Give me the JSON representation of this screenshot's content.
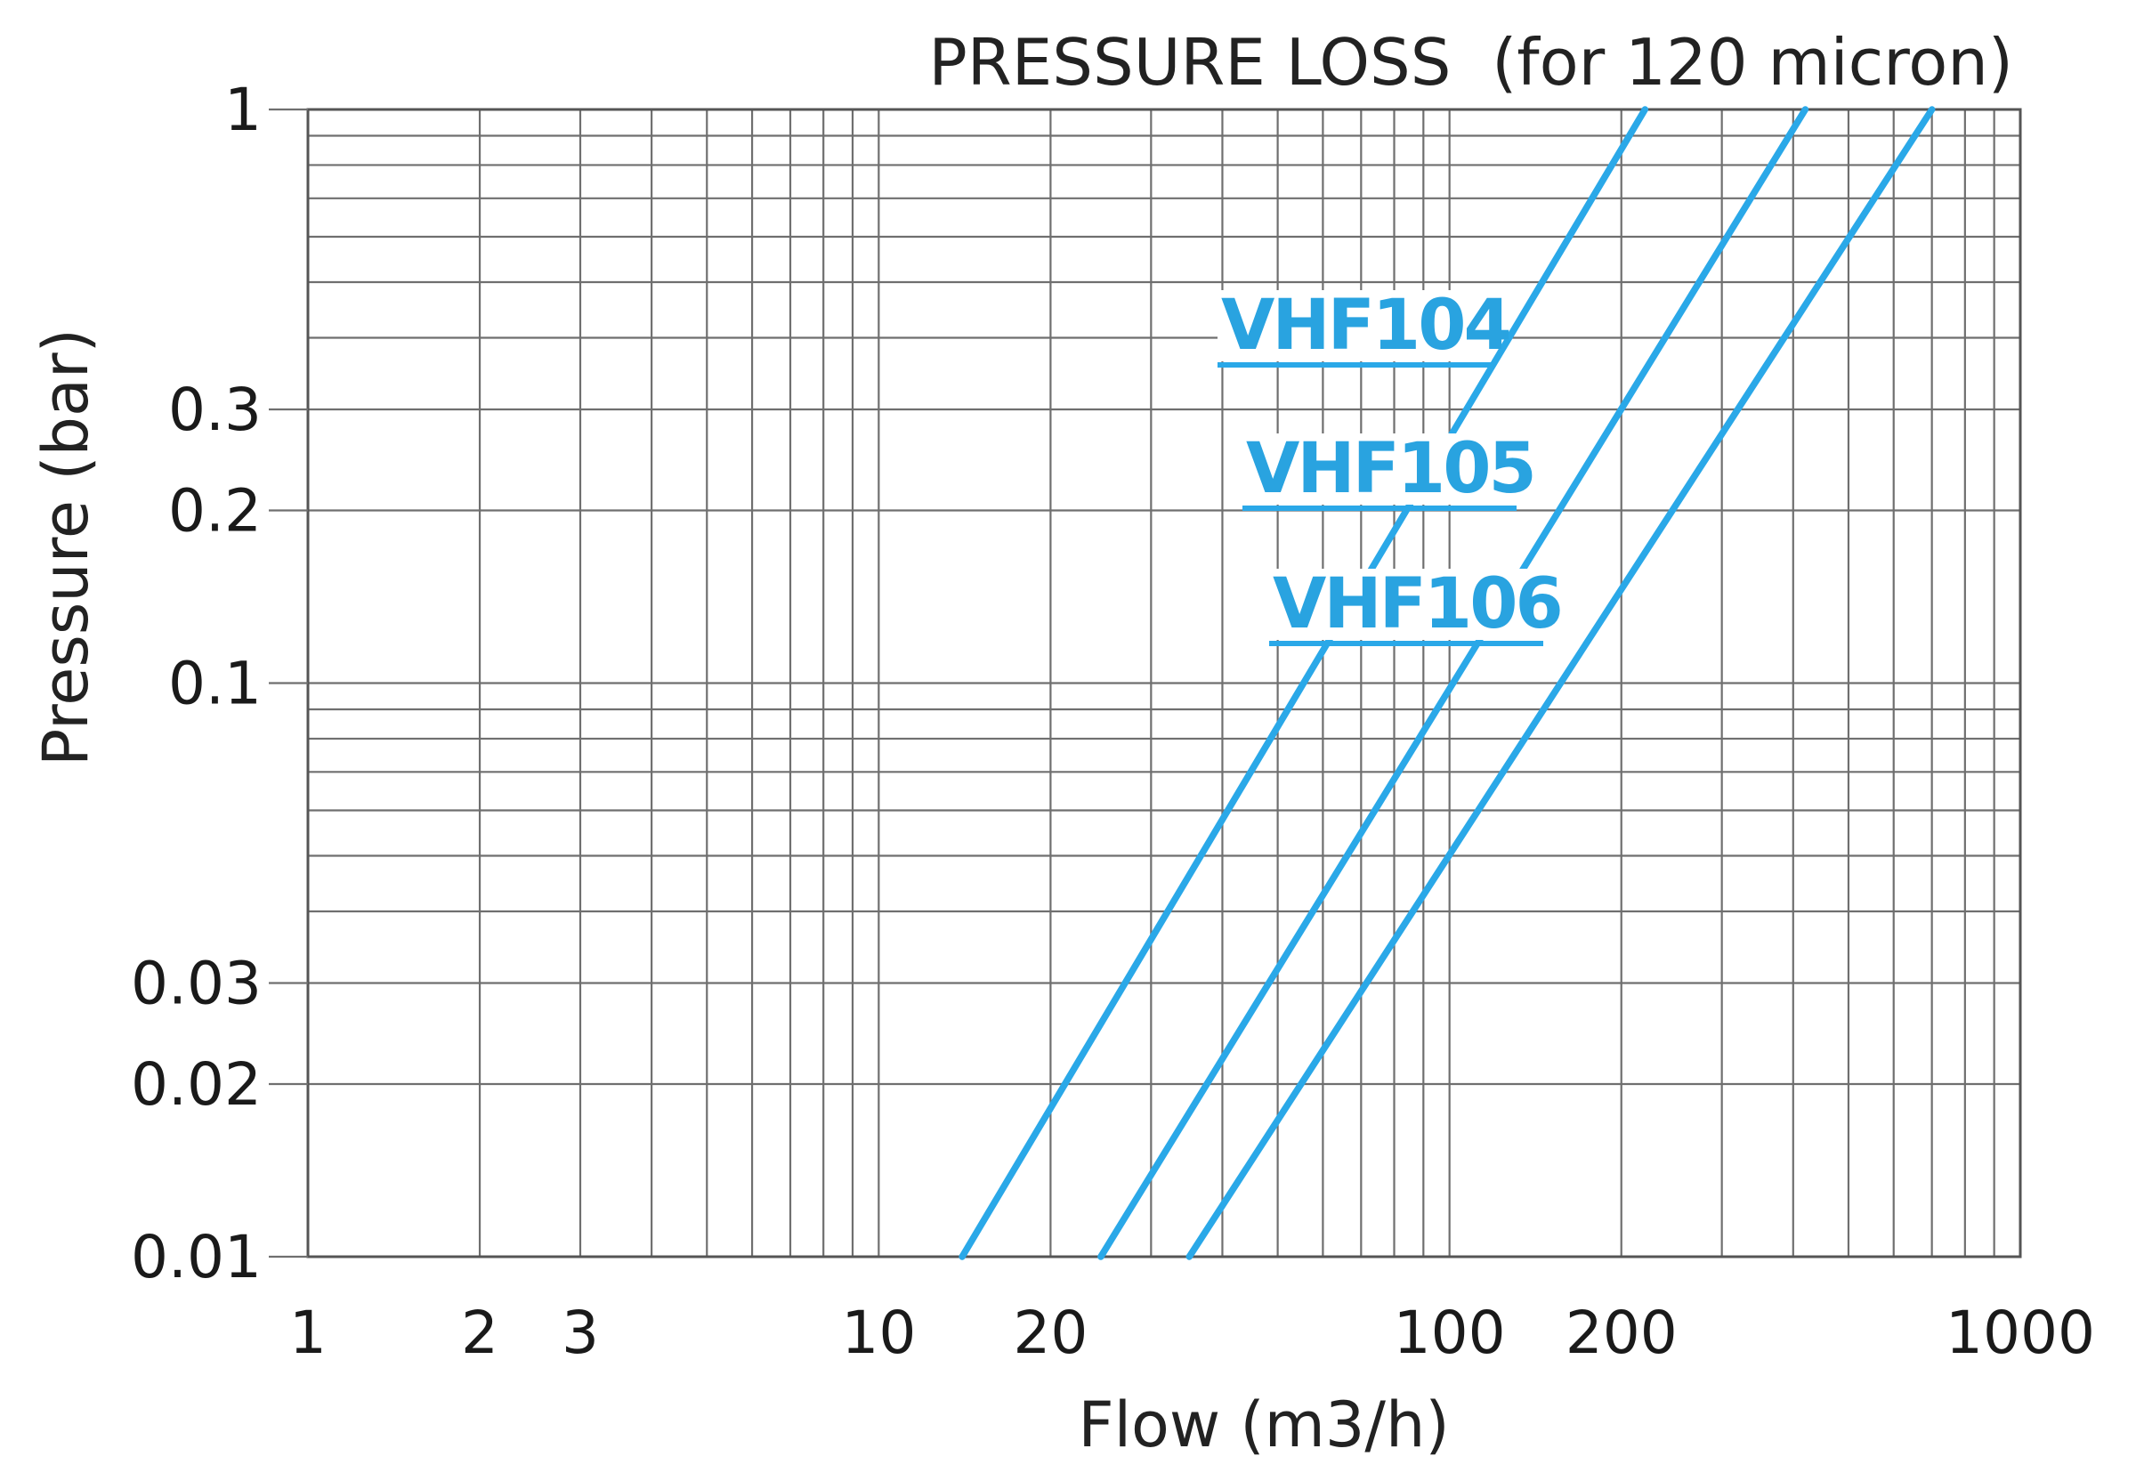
{
  "chart_data": {
    "type": "line",
    "title": "PRESSURE LOSS  (for 120 micron)",
    "xlabel": "Flow (m3/h)",
    "ylabel": "Pressure (bar)",
    "xscale": "log",
    "yscale": "log",
    "xlim": [
      1,
      1000
    ],
    "ylim": [
      0.01,
      1
    ],
    "grid": true,
    "x_ticks": [
      {
        "value": 1,
        "label": "1"
      },
      {
        "value": 2,
        "label": "2"
      },
      {
        "value": 3,
        "label": "3"
      },
      {
        "value": 10,
        "label": "10"
      },
      {
        "value": 20,
        "label": "20"
      },
      {
        "value": 100,
        "label": "100"
      },
      {
        "value": 200,
        "label": "200"
      },
      {
        "value": 1000,
        "label": "1000"
      }
    ],
    "y_ticks": [
      {
        "value": 0.01,
        "label": "0.01"
      },
      {
        "value": 0.02,
        "label": "0.02"
      },
      {
        "value": 0.03,
        "label": "0.03"
      },
      {
        "value": 0.1,
        "label": "0.1"
      },
      {
        "value": 0.2,
        "label": "0.2"
      },
      {
        "value": 0.3,
        "label": "0.3"
      },
      {
        "value": 1,
        "label": "1"
      }
    ],
    "series": [
      {
        "name": "VHF104",
        "color": "#2aa8e8",
        "x": [
          14,
          220
        ],
        "y": [
          0.01,
          1
        ]
      },
      {
        "name": "VHF105",
        "color": "#2aa8e8",
        "x": [
          24.5,
          420
        ],
        "y": [
          0.01,
          1
        ]
      },
      {
        "name": "VHF106",
        "color": "#2aa8e8",
        "x": [
          35,
          700
        ],
        "y": [
          0.01,
          1
        ]
      }
    ]
  }
}
